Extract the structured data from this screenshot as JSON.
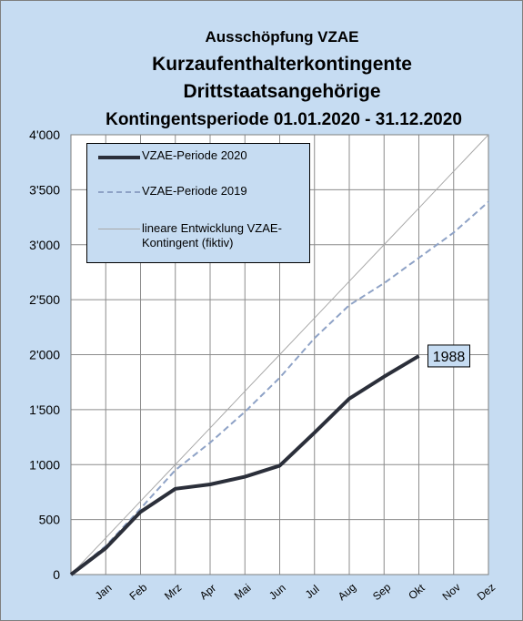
{
  "chart_data": {
    "type": "line",
    "title": "Ausschöpfung VZAE",
    "subtitle": [
      "Kurzaufenthalterkontingente",
      "Drittstaatsangehörige",
      "Kontingentsperiode 01.01.2020 - 31.12.2020"
    ],
    "categories": [
      null,
      "Jan",
      "Feb",
      "Mrz",
      "Apr",
      "Mai",
      "Jun",
      "Jul",
      "Aug",
      "Sep",
      "Okt",
      "Nov",
      "Dez"
    ],
    "series": [
      {
        "name": "VZAE-Periode 2020",
        "color": "#2b2f3a",
        "style": "solid",
        "width": 4,
        "values": [
          0,
          240,
          570,
          780,
          820,
          890,
          990,
          1290,
          1600,
          1800,
          1988,
          null,
          null
        ]
      },
      {
        "name": "VZAE-Periode 2019",
        "color": "#8ea2c6",
        "style": "dashed",
        "width": 2,
        "values": [
          0,
          260,
          600,
          950,
          1200,
          1480,
          1790,
          2150,
          2450,
          2650,
          2880,
          3110,
          3390
        ]
      },
      {
        "name": "lineare Entwicklung VZAE-Kontingent (fiktiv)",
        "color": "#a8a8a8",
        "style": "solid",
        "width": 1,
        "values": [
          0,
          333,
          667,
          1000,
          1333,
          1667,
          2000,
          2333,
          2667,
          3000,
          3333,
          3667,
          4000
        ]
      }
    ],
    "ylim": [
      0,
      4000
    ],
    "yticks": [
      0,
      500,
      {
        "value": 1000,
        "label": "1'000"
      },
      {
        "value": 1500,
        "label": "1'500"
      },
      {
        "value": 2000,
        "label": "2'000"
      },
      {
        "value": 2500,
        "label": "2'500"
      },
      {
        "value": 3000,
        "label": "3'000"
      },
      {
        "value": 3500,
        "label": "3'500"
      },
      {
        "value": 4000,
        "label": "4'000"
      }
    ],
    "grid": true,
    "legend": "top-left"
  }
}
